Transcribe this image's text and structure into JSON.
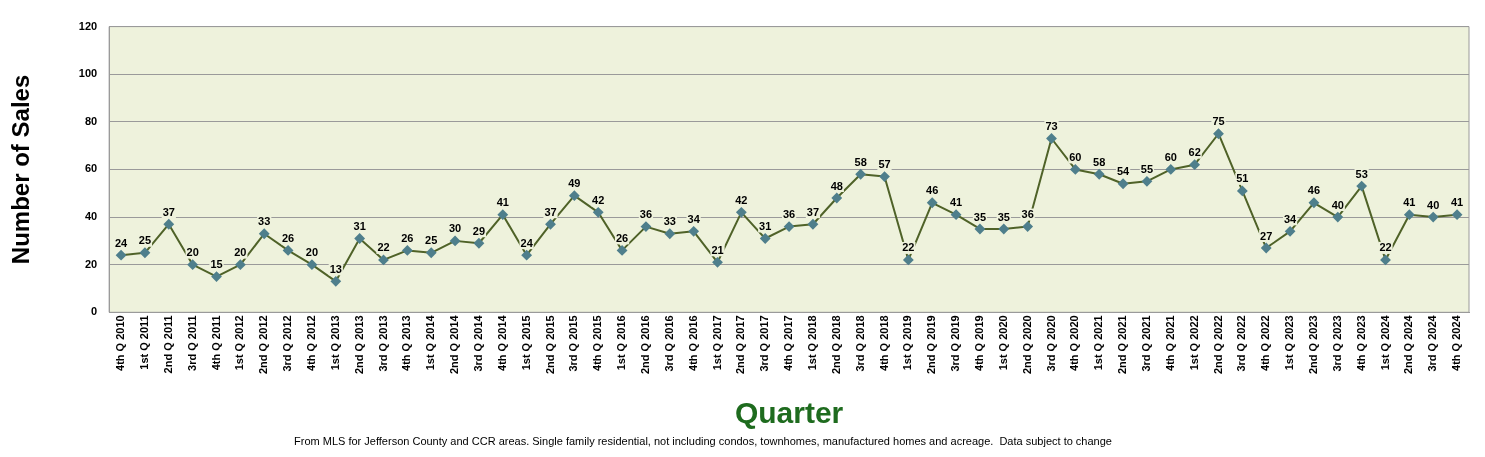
{
  "chart_data": {
    "type": "line",
    "xlabel": "Quarter",
    "ylabel": "Number of Sales",
    "categories": [
      "4th Q 2010",
      "1st Q 2011",
      "2nd Q 2011",
      "3rd Q 2011",
      "4th Q 2011",
      "1st Q 2012",
      "2nd Q 2012",
      "3rd Q 2012",
      "4th Q 2012",
      "1st Q 2013",
      "2nd Q 2013",
      "3rd Q 2013",
      "4th Q 2013",
      "1st Q 2014",
      "2nd Q 2014",
      "3rd Q 2014",
      "4th Q 2014",
      "1st Q 2015",
      "2nd Q 2015",
      "3rd Q 2015",
      "4th Q 2015",
      "1st Q 2016",
      "2nd Q 2016",
      "3rd Q 2016",
      "4th Q 2016",
      "1st Q 2017",
      "2nd Q 2017",
      "3rd Q 2017",
      "4th Q 2017",
      "1st Q 2018",
      "2nd Q 2018",
      "3rd Q 2018",
      "4th Q 2018",
      "1st Q 2019",
      "2nd Q 2019",
      "3rd Q 2019",
      "4th Q 2019",
      "1st Q 2020",
      "2nd Q 2020",
      "3rd Q 2020",
      "4th Q 2020",
      "1st Q 2021",
      "2nd Q 2021",
      "3rd Q 2021",
      "4th Q 2021",
      "1st Q 2022",
      "2nd Q 2022",
      "3rd Q 2022",
      "4th Q 2022",
      "1st Q 2023",
      "2nd Q 2023",
      "3rd Q 2023",
      "4th Q 2023",
      "1st Q 2024",
      "2nd Q 2024",
      "3rd Q 2024",
      "4th Q 2024"
    ],
    "series": [
      {
        "color": "#4f6228",
        "values": [
          24,
          25,
          37,
          20,
          15,
          20,
          33,
          26,
          20,
          13,
          31,
          22,
          26,
          25,
          30,
          29,
          41,
          24,
          37,
          49,
          42,
          26,
          36,
          33,
          34,
          21,
          42,
          31,
          36,
          37,
          48,
          58,
          57,
          22,
          46,
          41,
          35,
          35,
          36,
          73,
          60,
          58,
          54,
          55,
          60,
          62,
          75,
          51,
          27,
          34,
          46,
          40,
          53,
          22,
          41,
          40,
          41
        ]
      }
    ],
    "ylim": [
      0,
      120
    ],
    "yticks": [
      0,
      20,
      40,
      60,
      80,
      100,
      120
    ],
    "grid": "y",
    "legend": false,
    "marker": "diamond",
    "line_style": "solid",
    "data_labels": true,
    "annotations": [
      "From MLS for Jefferson County and CCR areas. Single family residential, not including condos, townhomes, manufactured homes and acreage.  Data subject to change"
    ]
  }
}
